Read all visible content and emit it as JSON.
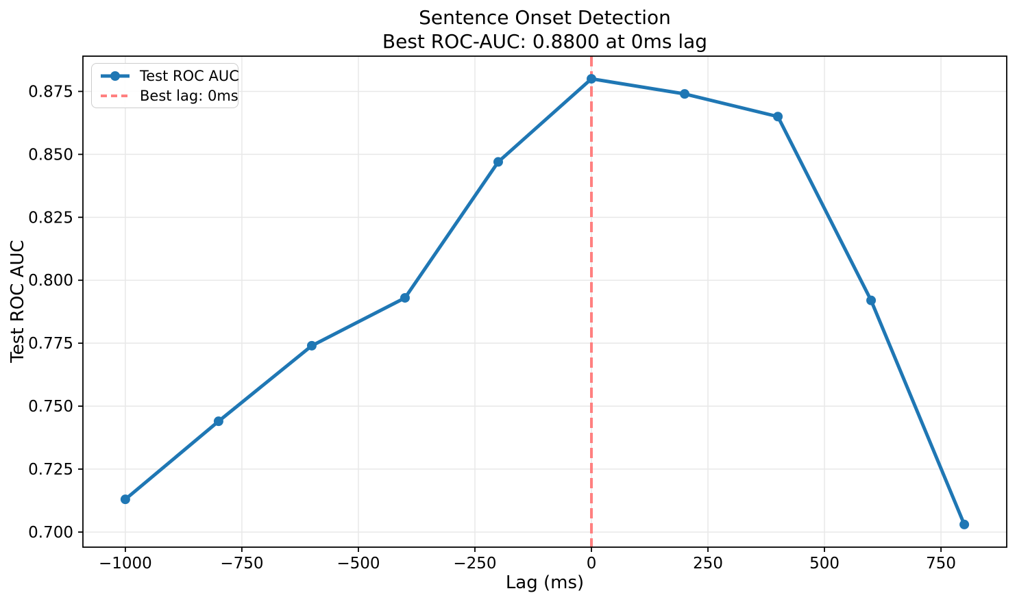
{
  "window": {
    "background": "#ffffff"
  },
  "title": {
    "line1": "Sentence Onset Detection",
    "line2": "Best ROC-AUC: 0.8800 at 0ms lag"
  },
  "axes": {
    "xlabel": "Lag (ms)",
    "ylabel": "Test ROC AUC"
  },
  "legend": {
    "items": [
      {
        "label": "Test ROC AUC",
        "swatch": "line-with-marker",
        "color": "#1f77b4"
      },
      {
        "label": "Best lag: 0ms",
        "swatch": "dashed-line",
        "color": "#ff8080"
      }
    ]
  },
  "chart_data": {
    "type": "line",
    "title": "Sentence Onset Detection — Best ROC-AUC: 0.8800 at 0ms lag",
    "xlabel": "Lag (ms)",
    "ylabel": "Test ROC AUC",
    "x": [
      -1000,
      -800,
      -600,
      -400,
      -200,
      0,
      200,
      400,
      600,
      800
    ],
    "series": [
      {
        "name": "Test ROC AUC",
        "values": [
          0.713,
          0.744,
          0.774,
          0.793,
          0.847,
          0.88,
          0.874,
          0.865,
          0.792,
          0.703
        ],
        "color": "#1f77b4",
        "marker": "circle",
        "line_width": 5,
        "marker_radius": 7
      }
    ],
    "vline": {
      "x": 0,
      "label": "Best lag: 0ms",
      "color": "#ff8080",
      "style": "dashed",
      "line_width": 4
    },
    "best_roc_auc": 0.88,
    "best_lag_ms": 0,
    "xlim": [
      -1091,
      891
    ],
    "ylim": [
      0.694,
      0.889
    ],
    "xticks": [
      -1000,
      -750,
      -500,
      -250,
      0,
      250,
      500,
      750
    ],
    "xtick_labels": [
      "−1000",
      "−750",
      "−500",
      "−250",
      "0",
      "250",
      "500",
      "750"
    ],
    "yticks": [
      0.7,
      0.725,
      0.75,
      0.775,
      0.8,
      0.825,
      0.85,
      0.875
    ],
    "ytick_labels": [
      "0.700",
      "0.725",
      "0.750",
      "0.775",
      "0.800",
      "0.825",
      "0.850",
      "0.875"
    ],
    "grid": true,
    "grid_color": "#e8e8e8",
    "spine_color": "#000000",
    "tick_color": "#000000",
    "legend_position": "upper left"
  }
}
